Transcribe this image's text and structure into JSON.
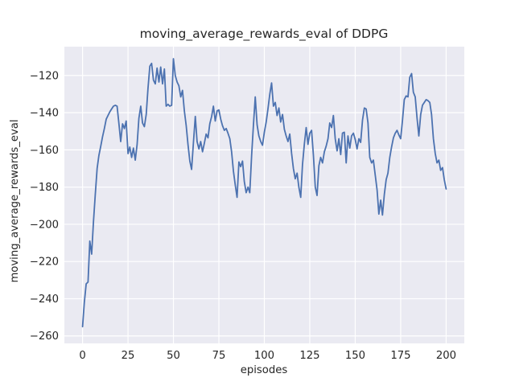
{
  "chart": {
    "title": "moving_average_rewards_eval of DDPG",
    "xlabel": "episodes",
    "ylabel": "moving_average_rewards_eval"
  },
  "chart_data": {
    "type": "line",
    "title": "moving_average_rewards_eval of DDPG",
    "xlabel": "episodes",
    "ylabel": "moving_average_rewards_eval",
    "xlim": [
      -10,
      210
    ],
    "ylim": [
      -264,
      -104.5
    ],
    "xticks": [
      0,
      25,
      50,
      75,
      100,
      125,
      150,
      175,
      200
    ],
    "yticks": [
      -260,
      -240,
      -220,
      -200,
      -180,
      -160,
      -140,
      -120
    ],
    "grid": true,
    "legend_position": "none",
    "line_color": "#4c72b0",
    "axes_bg_color": "#eaeaf2",
    "grid_color": "#ffffff",
    "text_color": "#262626",
    "x": [
      0,
      1,
      2,
      3,
      4,
      5,
      6,
      7,
      8,
      9,
      10,
      11,
      12,
      13,
      14,
      15,
      16,
      17,
      18,
      19,
      20,
      21,
      22,
      23,
      24,
      25,
      26,
      27,
      28,
      29,
      30,
      31,
      32,
      33,
      34,
      35,
      36,
      37,
      38,
      39,
      40,
      41,
      42,
      43,
      44,
      45,
      46,
      47,
      48,
      49,
      50,
      51,
      52,
      53,
      54,
      55,
      56,
      57,
      58,
      59,
      60,
      61,
      62,
      63,
      64,
      65,
      66,
      67,
      68,
      69,
      70,
      71,
      72,
      73,
      74,
      75,
      76,
      77,
      78,
      79,
      80,
      81,
      82,
      83,
      84,
      85,
      86,
      87,
      88,
      89,
      90,
      91,
      92,
      93,
      94,
      95,
      96,
      97,
      98,
      99,
      100,
      101,
      102,
      103,
      104,
      105,
      106,
      107,
      108,
      109,
      110,
      111,
      112,
      113,
      114,
      115,
      116,
      117,
      118,
      119,
      120,
      121,
      122,
      123,
      124,
      125,
      126,
      127,
      128,
      129,
      130,
      131,
      132,
      133,
      134,
      135,
      136,
      137,
      138,
      139,
      140,
      141,
      142,
      143,
      144,
      145,
      146,
      147,
      148,
      149,
      150,
      151,
      152,
      153,
      154,
      155,
      156,
      157,
      158,
      159,
      160,
      161,
      162,
      163,
      164,
      165,
      166,
      167,
      168,
      169,
      170,
      171,
      172,
      173,
      174,
      175,
      176,
      177,
      178,
      179,
      180,
      181,
      182,
      183,
      184,
      185,
      186,
      187,
      188,
      189,
      190,
      191,
      192,
      193,
      194,
      195,
      196,
      197,
      198,
      199,
      200
    ],
    "values": [
      -255,
      -242,
      -232,
      -231,
      -209,
      -216,
      -199,
      -184,
      -170,
      -163,
      -158,
      -153,
      -148.5,
      -143.5,
      -141.5,
      -139.5,
      -138,
      -136.5,
      -136,
      -136.5,
      -146,
      -155.5,
      -146,
      -148.5,
      -144.5,
      -162,
      -158.5,
      -164,
      -159,
      -165.5,
      -157,
      -143,
      -136.5,
      -145.5,
      -147.5,
      -141,
      -127,
      -115,
      -113.5,
      -122.5,
      -124.5,
      -116,
      -123.5,
      -115.5,
      -124.5,
      -116.5,
      -136.5,
      -135.5,
      -136.5,
      -136,
      -111,
      -120,
      -123.5,
      -125.5,
      -131.5,
      -128,
      -139,
      -147,
      -157,
      -166,
      -170.5,
      -156,
      -142,
      -155.5,
      -159.5,
      -155.5,
      -161,
      -156.5,
      -151.5,
      -153.5,
      -146,
      -142,
      -136.5,
      -144.5,
      -139,
      -138.5,
      -143.5,
      -147,
      -149.5,
      -148.5,
      -151,
      -154,
      -161,
      -171.5,
      -179,
      -185.5,
      -166.5,
      -169,
      -166,
      -177,
      -183,
      -180,
      -183,
      -163,
      -147,
      -131.5,
      -146.5,
      -152.5,
      -155.5,
      -157.5,
      -150.5,
      -145,
      -138,
      -130,
      -124,
      -136.5,
      -134.5,
      -141.5,
      -137.5,
      -145,
      -141,
      -149,
      -152.5,
      -155.5,
      -151.5,
      -162,
      -170,
      -175.5,
      -172.5,
      -180,
      -185.5,
      -168,
      -157,
      -148,
      -157,
      -151,
      -149.5,
      -163,
      -180,
      -184.5,
      -168.5,
      -164,
      -167,
      -161,
      -158,
      -154,
      -145.5,
      -148,
      -141.5,
      -154,
      -160.5,
      -154,
      -162.5,
      -151,
      -150.5,
      -167,
      -152.5,
      -159,
      -152.5,
      -151,
      -154.5,
      -159.5,
      -154,
      -156,
      -144,
      -137.5,
      -138,
      -145.5,
      -164,
      -167,
      -165.5,
      -173.5,
      -181.5,
      -194.5,
      -187,
      -195,
      -184,
      -176,
      -172.5,
      -164,
      -158.5,
      -153.5,
      -151,
      -149.5,
      -152,
      -154,
      -144,
      -133,
      -131,
      -131.5,
      -121,
      -119,
      -129,
      -131.5,
      -143,
      -152.5,
      -141,
      -136,
      -134.5,
      -133,
      -133.5,
      -134.5,
      -141,
      -154,
      -162,
      -167,
      -165.5,
      -171,
      -169.5,
      -176,
      -181
    ]
  }
}
